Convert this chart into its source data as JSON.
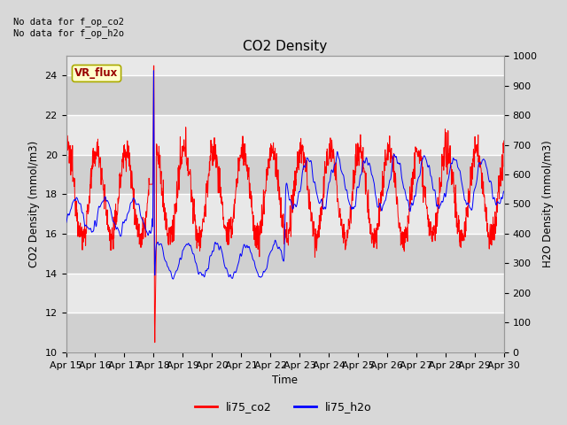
{
  "title": "CO2 Density",
  "xlabel": "Time",
  "ylabel_left": "CO2 Density (mmol/m3)",
  "ylabel_right": "H2O Density (mmol/m3)",
  "annotation_line1": "No data for f_op_co2",
  "annotation_line2": "No data for f_op_h2o",
  "legend_box_text": "VR_flux",
  "legend_box_color": "#ffffcc",
  "legend_box_edge": "#aaaa00",
  "legend_box_text_color": "#990000",
  "co2_color": "#ff0000",
  "h2o_color": "#0000ff",
  "co2_label": "li75_co2",
  "h2o_label": "li75_h2o",
  "ylim_left": [
    10,
    25
  ],
  "ylim_right": [
    0,
    1000
  ],
  "bg_color": "#d8d8d8",
  "plot_bg_color": "#e8e8e8",
  "stripe_color": "#d0d0d0",
  "grid_color": "#ffffff",
  "xtick_labels": [
    "Apr 15",
    "Apr 16",
    "Apr 17",
    "Apr 18",
    "Apr 19",
    "Apr 20",
    "Apr 21",
    "Apr 22",
    "Apr 23",
    "Apr 24",
    "Apr 25",
    "Apr 26",
    "Apr 27",
    "Apr 28",
    "Apr 29",
    "Apr 30"
  ],
  "yticks_left": [
    10,
    12,
    14,
    16,
    18,
    20,
    22,
    24
  ],
  "yticks_right": [
    0,
    100,
    200,
    300,
    400,
    500,
    600,
    700,
    800,
    900,
    1000
  ]
}
